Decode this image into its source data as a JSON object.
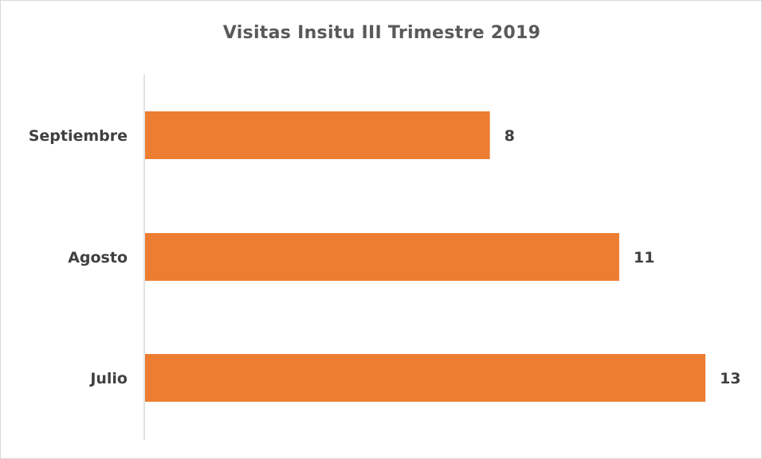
{
  "chart_data": {
    "type": "bar",
    "orientation": "horizontal",
    "title": "Visitas Insitu III Trimestre 2019",
    "categories": [
      "Julio",
      "Agosto",
      "Septiembre"
    ],
    "values": [
      13,
      11,
      8
    ],
    "xlabel": "",
    "ylabel": "",
    "xlim": [
      0,
      13
    ],
    "grid": false,
    "legend": "none",
    "bar_color": "#ED7D31"
  }
}
